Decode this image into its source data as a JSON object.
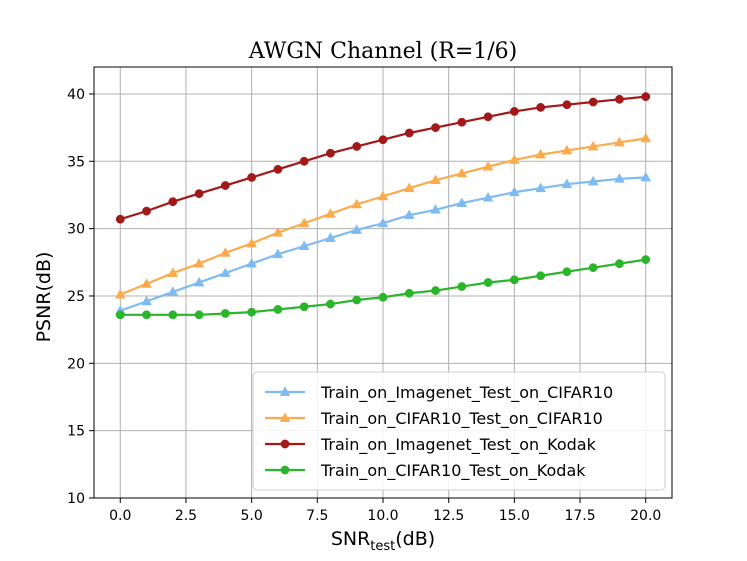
{
  "chart_data": {
    "type": "line",
    "title": "AWGN Channel (R=1/6)",
    "xlabel": {
      "main": "SNR",
      "sub": "test",
      "suffix": "(dB)"
    },
    "ylabel": "PSNR(dB)",
    "xlim": [
      -1,
      21
    ],
    "ylim": [
      10,
      42
    ],
    "xticks": [
      0.0,
      2.5,
      5.0,
      7.5,
      10.0,
      12.5,
      15.0,
      17.5,
      20.0
    ],
    "xtick_labels": [
      "0.0",
      "2.5",
      "5.0",
      "7.5",
      "10.0",
      "12.5",
      "15.0",
      "17.5",
      "20.0"
    ],
    "yticks": [
      10,
      15,
      20,
      25,
      30,
      35,
      40
    ],
    "ytick_labels": [
      "10",
      "15",
      "20",
      "25",
      "30",
      "35",
      "40"
    ],
    "grid": true,
    "legend_position": "lower-right",
    "x": [
      0,
      1,
      2,
      3,
      4,
      5,
      6,
      7,
      8,
      9,
      10,
      11,
      12,
      13,
      14,
      15,
      16,
      17,
      18,
      19,
      20
    ],
    "series": [
      {
        "name": "Train_on_Imagenet_Test_on_CIFAR10",
        "color": "#7fbaf0",
        "marker": "triangle",
        "values": [
          23.9,
          24.6,
          25.3,
          26.0,
          26.7,
          27.4,
          28.1,
          28.7,
          29.3,
          29.9,
          30.4,
          31.0,
          31.4,
          31.9,
          32.3,
          32.7,
          33.0,
          33.3,
          33.5,
          33.7,
          33.8
        ]
      },
      {
        "name": "Train_on_CIFAR10_Test_on_CIFAR10",
        "color": "#fcaa4e",
        "marker": "triangle",
        "values": [
          25.1,
          25.9,
          26.7,
          27.4,
          28.2,
          28.9,
          29.7,
          30.4,
          31.1,
          31.8,
          32.4,
          33.0,
          33.6,
          34.1,
          34.6,
          35.1,
          35.5,
          35.8,
          36.1,
          36.4,
          36.7
        ]
      },
      {
        "name": "Train_on_Imagenet_Test_on_Kodak",
        "color": "#a31818",
        "marker": "circle",
        "values": [
          30.7,
          31.3,
          32.0,
          32.6,
          33.2,
          33.8,
          34.4,
          35.0,
          35.6,
          36.1,
          36.6,
          37.1,
          37.5,
          37.9,
          38.3,
          38.7,
          39.0,
          39.2,
          39.4,
          39.6,
          39.8
        ]
      },
      {
        "name": "Train_on_CIFAR10_Test_on_Kodak",
        "color": "#2ab52a",
        "marker": "circle",
        "values": [
          23.6,
          23.6,
          23.6,
          23.6,
          23.7,
          23.8,
          24.0,
          24.2,
          24.4,
          24.7,
          24.9,
          25.2,
          25.4,
          25.7,
          26.0,
          26.2,
          26.5,
          26.8,
          27.1,
          27.4,
          27.7
        ]
      }
    ]
  }
}
